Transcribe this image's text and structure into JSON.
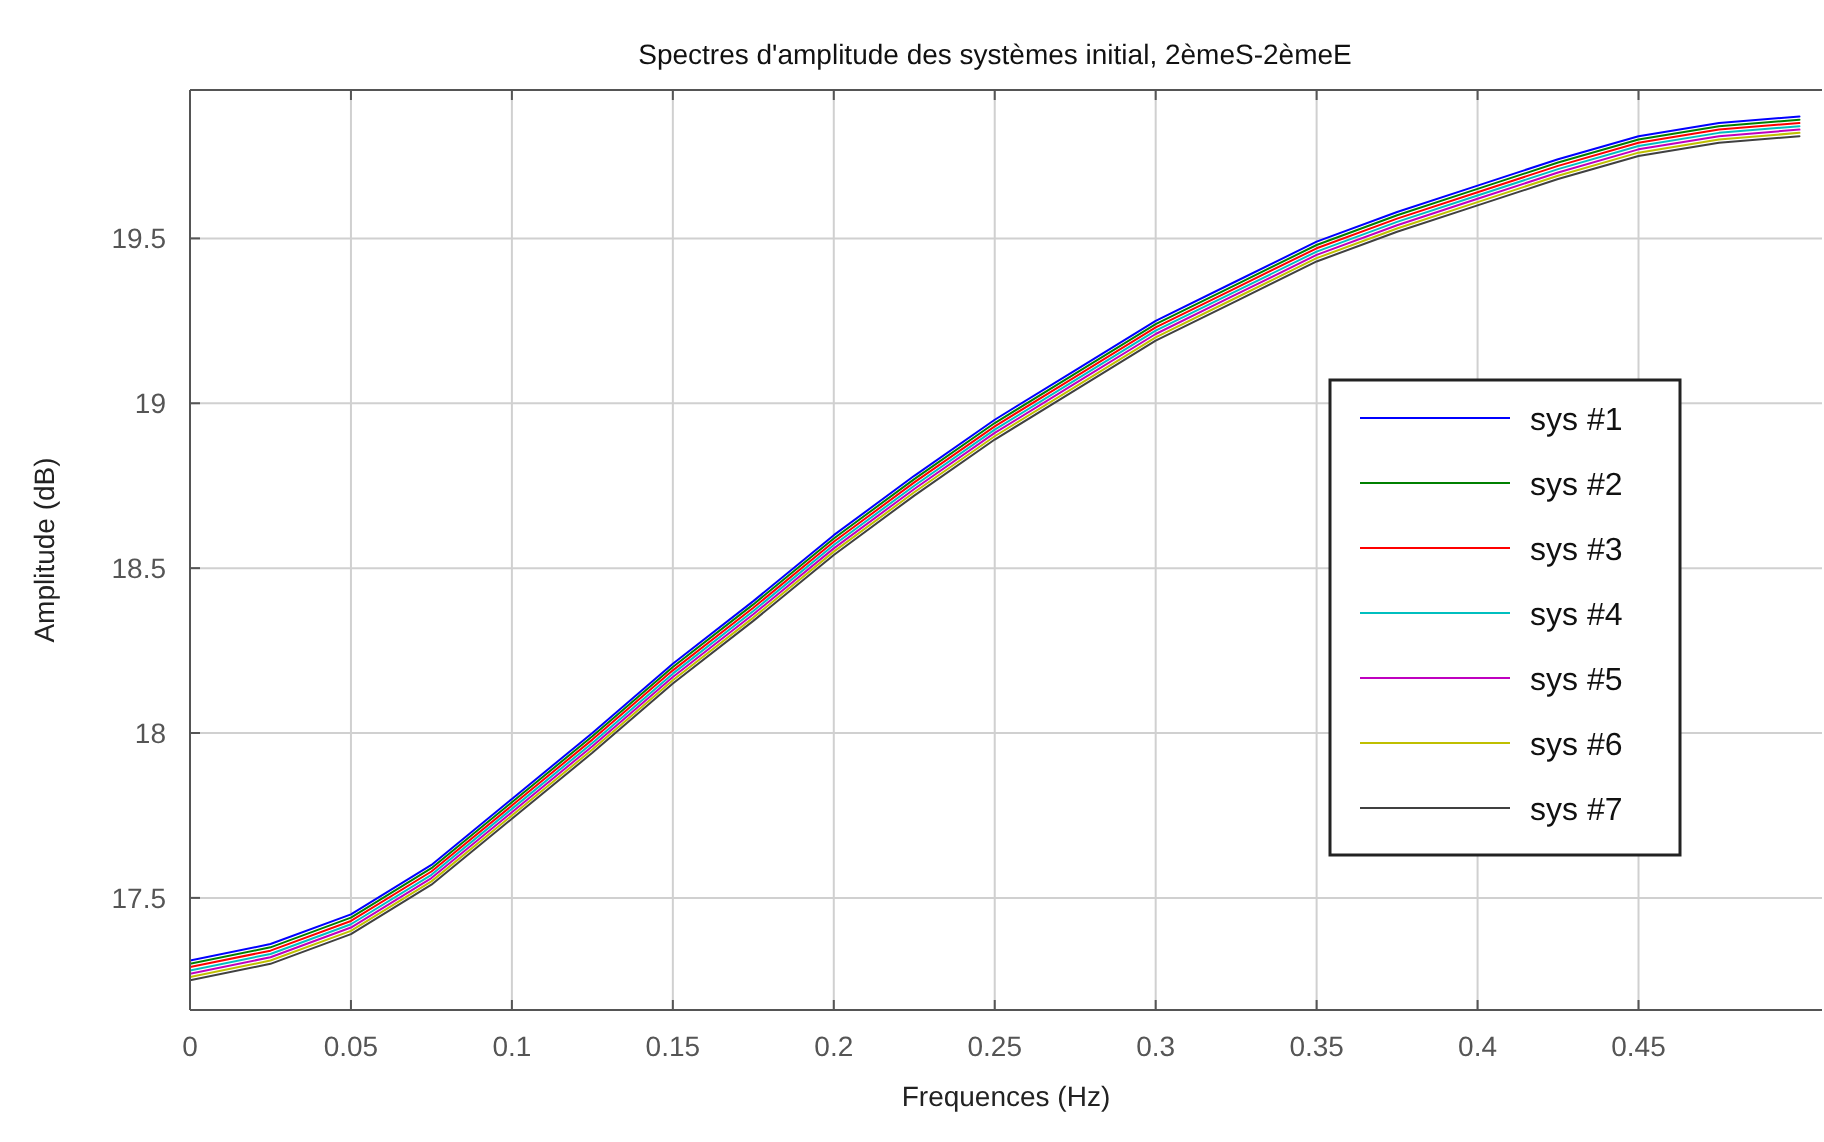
{
  "chart_data": {
    "type": "line",
    "title": "Spectres d'amplitude des systèmes initial, 2èmeS-2èmeE",
    "xlabel": "Frequences (Hz)",
    "ylabel": "Amplitude (dB)",
    "x": [
      0,
      0.025,
      0.05,
      0.075,
      0.1,
      0.125,
      0.15,
      0.175,
      0.2,
      0.225,
      0.25,
      0.275,
      0.3,
      0.325,
      0.35,
      0.375,
      0.4,
      0.425,
      0.45,
      0.475,
      0.5
    ],
    "series": [
      {
        "name": "sys #1",
        "color": "#0000ff",
        "values": [
          17.31,
          17.36,
          17.45,
          17.6,
          17.8,
          18.0,
          18.21,
          18.4,
          18.6,
          18.78,
          18.95,
          19.1,
          19.25,
          19.37,
          19.49,
          19.58,
          19.66,
          19.74,
          19.81,
          19.85,
          19.87
        ]
      },
      {
        "name": "sys #2",
        "color": "#008000",
        "values": [
          17.3,
          17.35,
          17.44,
          17.59,
          17.79,
          17.99,
          18.2,
          18.39,
          18.59,
          18.77,
          18.94,
          19.09,
          19.24,
          19.36,
          19.48,
          19.57,
          19.65,
          19.73,
          19.8,
          19.84,
          19.86
        ]
      },
      {
        "name": "sys #3",
        "color": "#ff0000",
        "values": [
          17.29,
          17.34,
          17.43,
          17.58,
          17.78,
          17.98,
          18.19,
          18.38,
          18.58,
          18.76,
          18.93,
          19.08,
          19.23,
          19.35,
          19.47,
          19.56,
          19.64,
          19.72,
          19.79,
          19.83,
          19.85
        ]
      },
      {
        "name": "sys #4",
        "color": "#00bfbf",
        "values": [
          17.28,
          17.33,
          17.42,
          17.57,
          17.77,
          17.97,
          18.18,
          18.37,
          18.57,
          18.75,
          18.92,
          19.07,
          19.22,
          19.34,
          19.46,
          19.55,
          19.63,
          19.71,
          19.78,
          19.82,
          19.84
        ]
      },
      {
        "name": "sys #5",
        "color": "#bf00bf",
        "values": [
          17.27,
          17.32,
          17.41,
          17.56,
          17.76,
          17.96,
          18.17,
          18.36,
          18.56,
          18.74,
          18.91,
          19.06,
          19.21,
          19.33,
          19.45,
          19.54,
          19.62,
          19.7,
          19.77,
          19.81,
          19.83
        ]
      },
      {
        "name": "sys #6",
        "color": "#bfbf00",
        "values": [
          17.26,
          17.31,
          17.4,
          17.55,
          17.75,
          17.95,
          18.16,
          18.35,
          18.55,
          18.73,
          18.9,
          19.05,
          19.2,
          19.32,
          19.44,
          19.53,
          19.61,
          19.69,
          19.76,
          19.8,
          19.82
        ]
      },
      {
        "name": "sys #7",
        "color": "#404040",
        "values": [
          17.25,
          17.3,
          17.39,
          17.54,
          17.74,
          17.94,
          18.15,
          18.34,
          18.54,
          18.72,
          18.89,
          19.04,
          19.19,
          19.31,
          19.43,
          19.52,
          19.6,
          19.68,
          19.75,
          19.79,
          19.81
        ]
      }
    ],
    "xlim": [
      0,
      0.507
    ],
    "xticks": [
      0,
      0.05,
      0.1,
      0.15,
      0.2,
      0.25,
      0.3,
      0.35,
      0.4,
      0.45
    ],
    "ylim": [
      17.16,
      19.95
    ],
    "yticks": [
      17.5,
      18,
      18.5,
      19,
      19.5
    ],
    "grid": true,
    "legend": "right",
    "marker": "none",
    "line_style": "solid"
  }
}
